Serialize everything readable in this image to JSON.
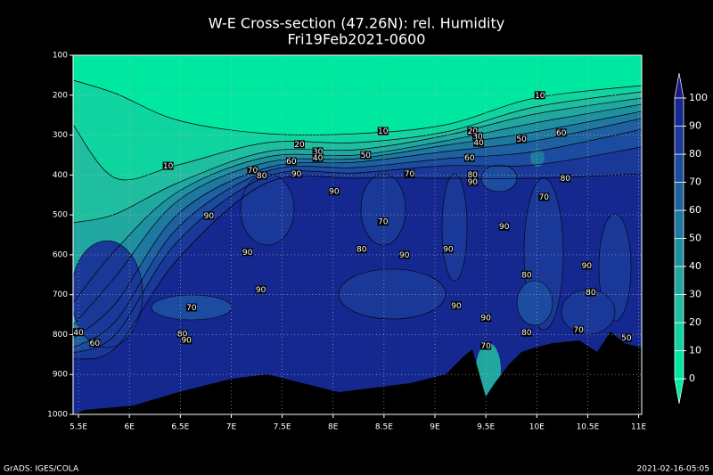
{
  "chart_data": {
    "type": "contour",
    "title": "W-E Cross-section (47.26N): rel. Humidity",
    "subtitle": "Fri19Feb2021-0600",
    "xlim": [
      5.447,
      11.03
    ],
    "xticks": [
      {
        "value": 5.5,
        "label": "5.5E"
      },
      {
        "value": 6,
        "label": "6E"
      },
      {
        "value": 6.5,
        "label": "6.5E"
      },
      {
        "value": 7,
        "label": "7E"
      },
      {
        "value": 7.5,
        "label": "7.5E"
      },
      {
        "value": 8,
        "label": "8E"
      },
      {
        "value": 8.5,
        "label": "8.5E"
      },
      {
        "value": 9,
        "label": "9E"
      },
      {
        "value": 9.5,
        "label": "9.5E"
      },
      {
        "value": 10,
        "label": "10E"
      },
      {
        "value": 10.5,
        "label": "10.5E"
      },
      {
        "value": 11,
        "label": "11E"
      }
    ],
    "ylim": [
      1000,
      100
    ],
    "yticks": [
      100,
      200,
      300,
      400,
      500,
      600,
      700,
      800,
      900,
      1000
    ],
    "grid": true,
    "colorbar": {
      "levels": [
        0,
        10,
        20,
        30,
        40,
        50,
        60,
        70,
        80,
        90,
        100
      ],
      "colors": [
        "#00f0a0",
        "#00e8a0",
        "#10d4a0",
        "#20bea0",
        "#20a8a0",
        "#1e90a0",
        "#1e78a0",
        "#1e60a0",
        "#1c4ca0",
        "#1a3898",
        "#142890",
        "#1a1a80"
      ]
    },
    "contour_labels": [
      {
        "x": 10.03,
        "y": 200,
        "value": 10
      },
      {
        "x": 8.49,
        "y": 290,
        "value": 10
      },
      {
        "x": 6.38,
        "y": 377,
        "value": 10
      },
      {
        "x": 7.67,
        "y": 323,
        "value": 20
      },
      {
        "x": 7.85,
        "y": 341,
        "value": 30
      },
      {
        "x": 7.85,
        "y": 357,
        "value": 40
      },
      {
        "x": 8.32,
        "y": 350,
        "value": 50
      },
      {
        "x": 7.59,
        "y": 366,
        "value": 60
      },
      {
        "x": 7.21,
        "y": 388,
        "value": 70
      },
      {
        "x": 7.3,
        "y": 401,
        "value": 80
      },
      {
        "x": 7.64,
        "y": 397,
        "value": 90
      },
      {
        "x": 8.75,
        "y": 397,
        "value": 70
      },
      {
        "x": 8.01,
        "y": 441,
        "value": 90
      },
      {
        "x": 6.78,
        "y": 502,
        "value": 90
      },
      {
        "x": 8.49,
        "y": 517,
        "value": 70
      },
      {
        "x": 8.28,
        "y": 586,
        "value": 80
      },
      {
        "x": 7.16,
        "y": 593,
        "value": 90
      },
      {
        "x": 8.7,
        "y": 600,
        "value": 90
      },
      {
        "x": 9.13,
        "y": 586,
        "value": 90
      },
      {
        "x": 7.29,
        "y": 687,
        "value": 90
      },
      {
        "x": 6.61,
        "y": 732,
        "value": 70
      },
      {
        "x": 9.21,
        "y": 727,
        "value": 90
      },
      {
        "x": 9.5,
        "y": 758,
        "value": 90
      },
      {
        "x": 9.37,
        "y": 290,
        "value": 20
      },
      {
        "x": 9.42,
        "y": 303,
        "value": 30
      },
      {
        "x": 9.43,
        "y": 319,
        "value": 40
      },
      {
        "x": 9.85,
        "y": 310,
        "value": 50
      },
      {
        "x": 10.24,
        "y": 294,
        "value": 60
      },
      {
        "x": 9.34,
        "y": 357,
        "value": 60
      },
      {
        "x": 9.37,
        "y": 399,
        "value": 80
      },
      {
        "x": 9.37,
        "y": 417,
        "value": 90
      },
      {
        "x": 10.28,
        "y": 408,
        "value": 80
      },
      {
        "x": 10.07,
        "y": 455,
        "value": 70
      },
      {
        "x": 9.68,
        "y": 529,
        "value": 90
      },
      {
        "x": 10.49,
        "y": 627,
        "value": 90
      },
      {
        "x": 9.9,
        "y": 650,
        "value": 80
      },
      {
        "x": 10.53,
        "y": 694,
        "value": 80
      },
      {
        "x": 9.9,
        "y": 795,
        "value": 80
      },
      {
        "x": 10.41,
        "y": 788,
        "value": 70
      },
      {
        "x": 10.88,
        "y": 808,
        "value": 50
      },
      {
        "x": 9.5,
        "y": 828,
        "value": 70
      },
      {
        "x": 5.5,
        "y": 794,
        "value": 40
      },
      {
        "x": 5.66,
        "y": 821,
        "value": 60
      },
      {
        "x": 6.52,
        "y": 798,
        "value": 80
      },
      {
        "x": 6.56,
        "y": 814,
        "value": 90
      }
    ],
    "footer_left": "GrADS: IGES/COLA",
    "footer_right": "2021-02-16-05:05"
  }
}
